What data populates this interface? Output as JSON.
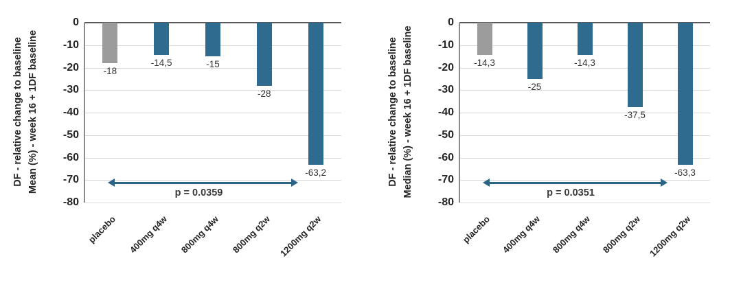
{
  "colors": {
    "bar_treatment": "#2e6b8e",
    "bar_placebo": "#9c9c9c",
    "arrow": "#2c6485",
    "grid": "#d9d9d9",
    "zero_line": "#595959",
    "axis_line": "#8c8c8c",
    "text": "#262626"
  },
  "chart_data": [
    {
      "type": "bar",
      "title": "",
      "ylabel_line1": "DF - relative change to baseline",
      "ylabel_line2": "Mean (%) - week 16 + 1DF baseline",
      "categories": [
        "placebo",
        "400mg q4w",
        "800mg q4w",
        "800mg q2w",
        "1200mg q2w"
      ],
      "values": [
        -18,
        -14.5,
        -15,
        -28,
        -63.2
      ],
      "value_labels": [
        "-18",
        "-14,5",
        "-15",
        "-28",
        "-63,2"
      ],
      "bar_colors": [
        "#9c9c9c",
        "#2e6b8e",
        "#2e6b8e",
        "#2e6b8e",
        "#2e6b8e"
      ],
      "ylim": [
        -80,
        0
      ],
      "yticks": [
        0,
        -10,
        -20,
        -30,
        -40,
        -50,
        -60,
        -70,
        -80
      ],
      "grid": true,
      "legend": "none",
      "annotation": {
        "text": "p = 0.0359",
        "arrow_from_category": 0,
        "arrow_to_category": 4,
        "arrow_y_value": -71
      }
    },
    {
      "type": "bar",
      "title": "",
      "ylabel_line1": "DF - relative change to baseline",
      "ylabel_line2": "Median (%) - week 16 + 1DF baseline",
      "categories": [
        "placebo",
        "400mg q4w",
        "800mg q4w",
        "800mg q2w",
        "1200mg q2w"
      ],
      "values": [
        -14.3,
        -25,
        -14.3,
        -37.5,
        -63.3
      ],
      "value_labels": [
        "-14,3",
        "-25",
        "-14,3",
        "-37,5",
        "-63,3"
      ],
      "bar_colors": [
        "#9c9c9c",
        "#2e6b8e",
        "#2e6b8e",
        "#2e6b8e",
        "#2e6b8e"
      ],
      "ylim": [
        -80,
        0
      ],
      "yticks": [
        0,
        -10,
        -20,
        -30,
        -40,
        -50,
        -60,
        -70,
        -80
      ],
      "grid": true,
      "legend": "none",
      "annotation": {
        "text": "p = 0.0351",
        "arrow_from_category": 0,
        "arrow_to_category": 4,
        "arrow_y_value": -71
      }
    }
  ]
}
